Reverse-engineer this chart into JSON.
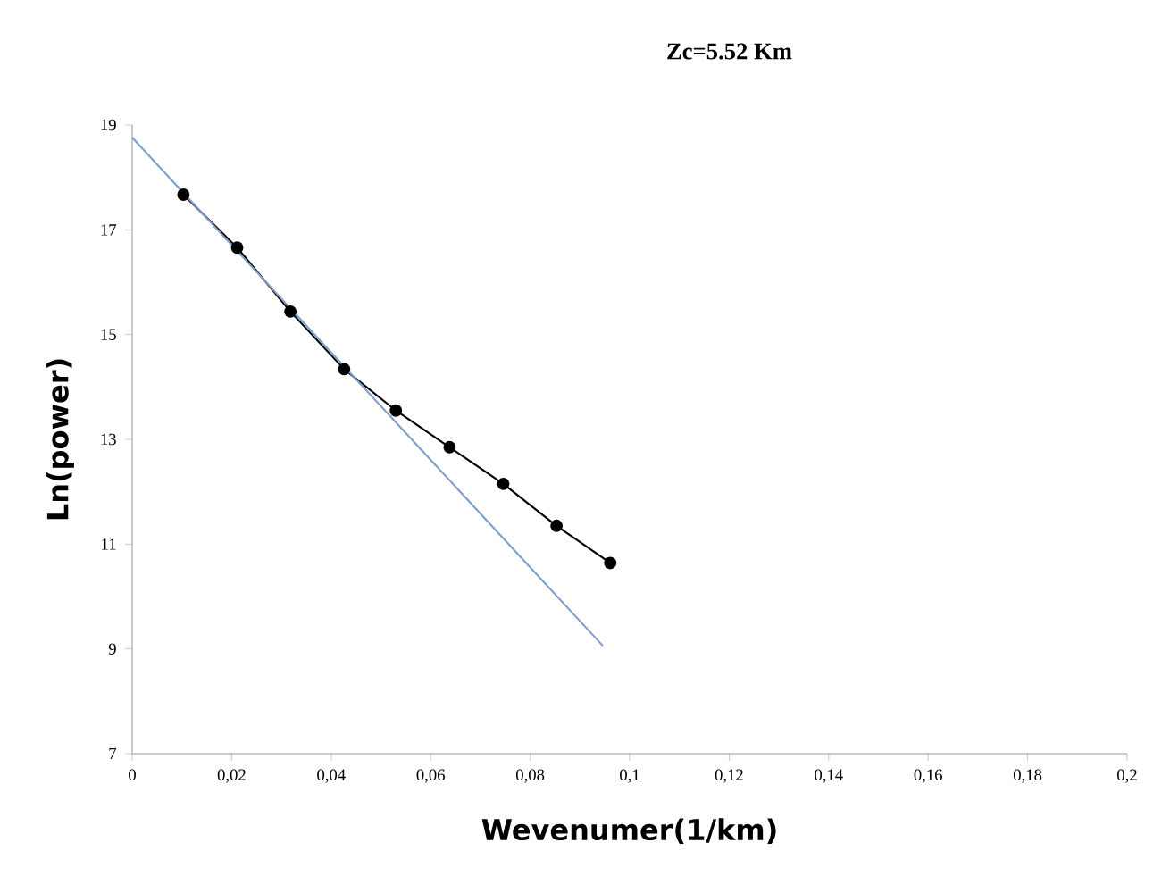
{
  "chart_data": {
    "type": "line",
    "title": "Zc=5.52 Km",
    "xlabel": "Wevenumer(1/km)",
    "ylabel": "Ln(power)",
    "xlim": [
      0,
      0.2
    ],
    "ylim": [
      7,
      19
    ],
    "xticks": [
      {
        "value": 0,
        "label": "0"
      },
      {
        "value": 0.02,
        "label": "0,02"
      },
      {
        "value": 0.04,
        "label": "0,04"
      },
      {
        "value": 0.06,
        "label": "0,06"
      },
      {
        "value": 0.08,
        "label": "0,08"
      },
      {
        "value": 0.1,
        "label": "0,1"
      },
      {
        "value": 0.12,
        "label": "0,12"
      },
      {
        "value": 0.14,
        "label": "0,14"
      },
      {
        "value": 0.16,
        "label": "0,16"
      },
      {
        "value": 0.18,
        "label": "0,18"
      },
      {
        "value": 0.2,
        "label": "0,2"
      }
    ],
    "yticks": [
      7,
      9,
      11,
      13,
      15,
      17,
      19
    ],
    "grid": false,
    "series": [
      {
        "color": "#000000",
        "marker": "circle",
        "x": [
          0.0103,
          0.0211,
          0.0318,
          0.0426,
          0.053,
          0.0638,
          0.0746,
          0.0853,
          0.0961
        ],
        "values": [
          17.67,
          16.66,
          15.44,
          14.34,
          13.55,
          12.85,
          12.15,
          11.35,
          10.64
        ]
      },
      {
        "color": "#7f9fc8",
        "marker": "none",
        "x": [
          0,
          0.0946
        ],
        "values": [
          18.76,
          9.06
        ]
      }
    ]
  }
}
